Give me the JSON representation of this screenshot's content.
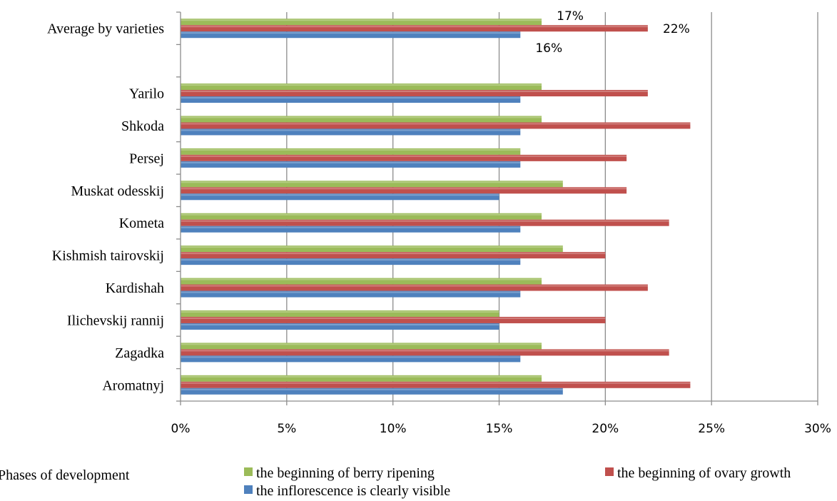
{
  "chart_data": {
    "type": "bar",
    "orientation": "horizontal",
    "categories": [
      "Average by varieties",
      "",
      "Yarilo",
      "Shkoda",
      "Persej",
      "Muskat odesskij",
      "Kometa",
      "Kishmish tairovskij",
      "Kardishah",
      "Ilichevskij rannij",
      "Zagadka",
      "Aromatnyj"
    ],
    "series": [
      {
        "name": "the beginning of berry ripening",
        "color": "#9BBB59",
        "values": [
          17,
          null,
          17,
          17,
          16,
          18,
          17,
          18,
          17,
          15,
          17,
          17
        ]
      },
      {
        "name": "the beginning of ovary growth",
        "color": "#C0504D",
        "values": [
          22,
          null,
          22,
          24,
          21,
          21,
          23,
          20,
          22,
          20,
          23,
          24
        ]
      },
      {
        "name": "the inflorescence is clearly visible",
        "color": "#4F81BD",
        "values": [
          16,
          null,
          16,
          16,
          16,
          15,
          16,
          16,
          16,
          15,
          16,
          18
        ]
      }
    ],
    "data_labels": [
      {
        "category": "Average by varieties",
        "series": "the beginning of berry ripening",
        "text": "17%"
      },
      {
        "category": "Average by varieties",
        "series": "the beginning of ovary growth",
        "text": "22%"
      },
      {
        "category": "Average by varieties",
        "series": "the inflorescence is clearly visible",
        "text": "16%"
      }
    ],
    "xlim": [
      0,
      30
    ],
    "xticks": [
      0,
      5,
      10,
      15,
      20,
      25,
      30
    ],
    "xtick_labels": [
      "0%",
      "5%",
      "10%",
      "15%",
      "20%",
      "25%",
      "30%"
    ],
    "grid": "vertical",
    "legend": {
      "title": "Phases of development",
      "placement": "bottom",
      "entries": [
        "the beginning of berry ripening",
        "the beginning of ovary growth",
        "the inflorescence is clearly visible"
      ]
    }
  }
}
